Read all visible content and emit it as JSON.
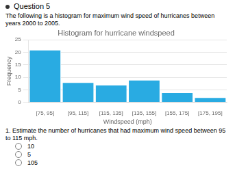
{
  "header": "Question 5",
  "intro": "The following is a histogram for maximum wind speed of hurricanes between years 2000 to 2005.",
  "question": "1. Estimate the number of hurricanes that had maximum wind speed between 95 to 115 mph.",
  "options": [
    "10",
    "5",
    "105"
  ],
  "chart_data": {
    "type": "bar",
    "title": "Histogram for hurricane windspeed",
    "x_label": "Windspeed (mph)",
    "y_label": "Frequency",
    "categories": [
      "[75, 95]",
      "[95, 115]",
      "[115, 135]",
      "[135, 155]",
      "[155, 175]",
      "[175, 195]"
    ],
    "values": [
      21,
      8,
      7,
      9,
      4,
      2
    ],
    "color": "#29ABE2",
    "ylim": [
      0,
      25
    ],
    "yticks": [
      0,
      5,
      10,
      15,
      20,
      25
    ],
    "grid": true
  }
}
